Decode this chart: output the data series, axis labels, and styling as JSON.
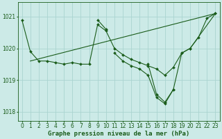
{
  "background_color": "#cceae7",
  "grid_color": "#aad4d0",
  "line_color": "#1a5c1a",
  "marker_color": "#1a5c1a",
  "xlabel": "Graphe pression niveau de la mer (hPa)",
  "xlabel_fontsize": 6.5,
  "tick_fontsize": 5.5,
  "ylim": [
    1017.7,
    1021.45
  ],
  "xlim": [
    -0.5,
    23.5
  ],
  "yticks": [
    1018,
    1019,
    1020,
    1021
  ],
  "xticks": [
    0,
    1,
    2,
    3,
    4,
    5,
    6,
    7,
    8,
    9,
    10,
    11,
    12,
    13,
    14,
    15,
    16,
    17,
    18,
    19,
    20,
    21,
    22,
    23
  ],
  "connected_series": [
    {
      "x": [
        0,
        1,
        2,
        3,
        4,
        5,
        6,
        7,
        8,
        9,
        10,
        11,
        12,
        13,
        14,
        15,
        16,
        17,
        18,
        19,
        20,
        21,
        22,
        23
      ],
      "y": [
        1020.9,
        1019.9,
        1019.6,
        1019.6,
        1019.55,
        1019.5,
        1019.55,
        1019.5,
        1019.5,
        1020.75,
        1020.55,
        1020.0,
        1019.8,
        1019.65,
        1019.55,
        1019.45,
        1019.35,
        1019.15,
        1019.4,
        1019.85,
        1020.0,
        1020.35,
        1020.95,
        1021.1
      ]
    },
    {
      "x": [
        9,
        10
      ],
      "y": [
        1020.9,
        1020.6
      ]
    },
    {
      "x": [
        15,
        16,
        17,
        18
      ],
      "y": [
        1019.5,
        1018.55,
        1018.3,
        1018.7
      ]
    },
    {
      "x": [
        11,
        12,
        13,
        14,
        15,
        16,
        17,
        18,
        19,
        20,
        23
      ],
      "y": [
        1019.85,
        1019.6,
        1019.45,
        1019.35,
        1019.15,
        1018.45,
        1018.25,
        1018.7,
        1019.85,
        1020.0,
        1021.1
      ]
    },
    {
      "x": [
        1,
        23
      ],
      "y": [
        1019.6,
        1021.1
      ]
    }
  ]
}
